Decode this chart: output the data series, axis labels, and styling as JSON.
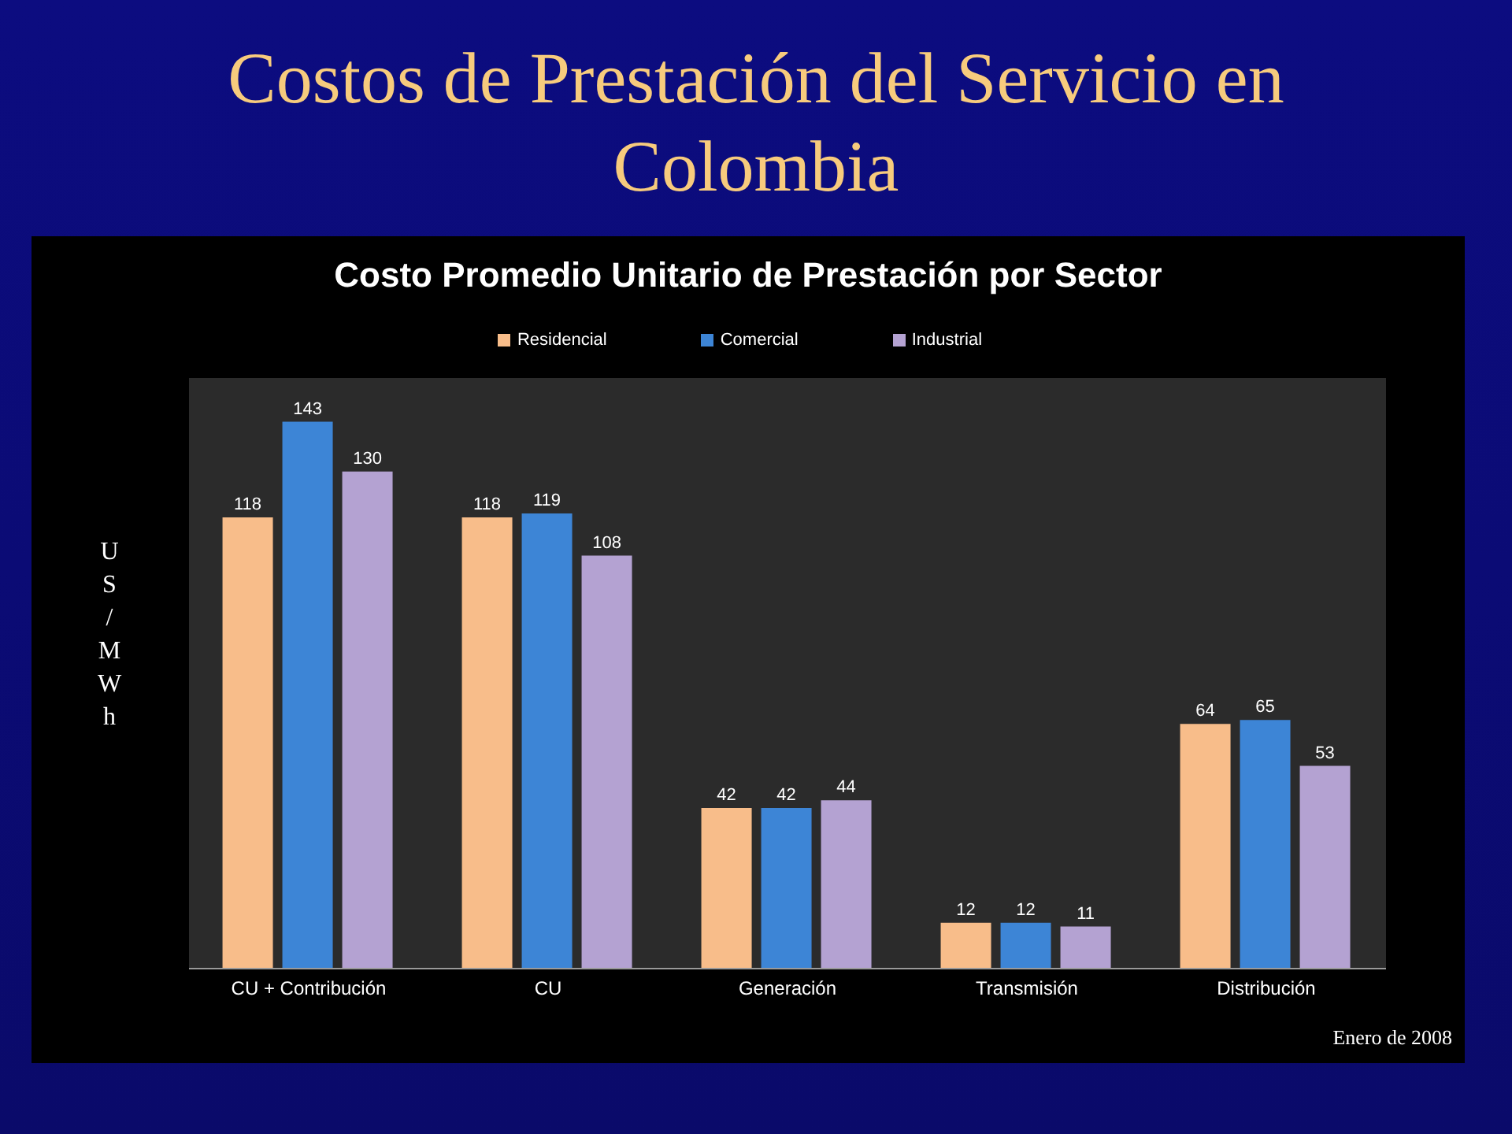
{
  "chart_data": {
    "type": "bar",
    "title": "Costos de Prestación del Servicio en Colombia",
    "subtitle": "Costo Promedio Unitario de Prestación por Sector",
    "ylabel": "US/MWh",
    "annotations": [
      "Enero de 2008"
    ],
    "categories": [
      "CU + Contribución",
      "CU",
      "Generación",
      "Transmisión",
      "Distribución"
    ],
    "series": [
      {
        "name": "Residencial",
        "color": "#f8bd8a",
        "values": [
          118,
          118,
          42,
          12,
          64
        ]
      },
      {
        "name": "Comercial",
        "color": "#3d85d6",
        "values": [
          143,
          119,
          42,
          12,
          65
        ]
      },
      {
        "name": "Industrial",
        "color": "#b4a2d2",
        "values": [
          130,
          108,
          44,
          11,
          53
        ]
      }
    ],
    "data_labels": true,
    "legend": "top"
  }
}
